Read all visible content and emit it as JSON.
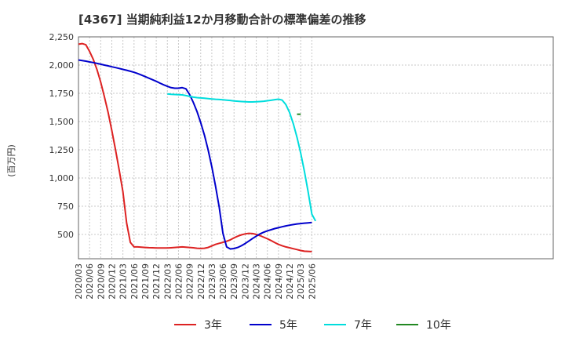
{
  "chart_data": {
    "type": "line",
    "title": "[4367]  当期純利益12か月移動合計の標準偏差の推移",
    "ylabel": "(百万円)",
    "xlabel": "",
    "ylim": [
      285,
      2250
    ],
    "yticks": [
      500,
      750,
      1000,
      1250,
      1500,
      1750,
      2000,
      2250
    ],
    "ytick_labels": [
      "500",
      "750",
      "1,000",
      "1,250",
      "1,500",
      "1,750",
      "2,000",
      "2,250"
    ],
    "x_start": "2020/03",
    "x_end": "2025/06",
    "xtick_labels": [
      "2020/03",
      "2020/06",
      "2020/09",
      "2020/12",
      "2021/03",
      "2021/06",
      "2021/09",
      "2021/12",
      "2022/03",
      "2022/06",
      "2022/09",
      "2022/12",
      "2023/03",
      "2023/06",
      "2023/09",
      "2023/12",
      "2024/03",
      "2024/06",
      "2024/09",
      "2024/12",
      "2025/03",
      "2025/06"
    ],
    "grid": true,
    "legend_position": "bottom",
    "series": [
      {
        "name": "3年",
        "color": "#dd2222",
        "start": "2020/03",
        "values": [
          2185,
          2190,
          2180,
          2120,
          2050,
          1960,
          1850,
          1720,
          1580,
          1420,
          1250,
          1070,
          880,
          600,
          430,
          390,
          390,
          388,
          385,
          383,
          382,
          380,
          380,
          380,
          380,
          382,
          385,
          388,
          390,
          388,
          385,
          382,
          378,
          376,
          378,
          385,
          398,
          412,
          422,
          430,
          440,
          452,
          470,
          485,
          497,
          505,
          510,
          508,
          500,
          490,
          476,
          462,
          446,
          428,
          412,
          400,
          390,
          382,
          374,
          366,
          358,
          352,
          350,
          348
        ]
      },
      {
        "name": "5年",
        "color": "#0000cc",
        "start": "2020/03",
        "values": [
          2045,
          2040,
          2035,
          2028,
          2022,
          2015,
          2008,
          2000,
          1993,
          1985,
          1978,
          1970,
          1962,
          1954,
          1945,
          1936,
          1925,
          1912,
          1898,
          1884,
          1870,
          1856,
          1840,
          1825,
          1812,
          1800,
          1795,
          1795,
          1800,
          1790,
          1740,
          1670,
          1590,
          1490,
          1380,
          1250,
          1100,
          930,
          740,
          510,
          390,
          372,
          375,
          385,
          400,
          420,
          442,
          464,
          485,
          505,
          520,
          532,
          542,
          552,
          560,
          568,
          576,
          582,
          588,
          593,
          597,
          600,
          603,
          606
        ]
      },
      {
        "name": "7年",
        "color": "#00dddd",
        "start": "2022/03",
        "values": [
          1745,
          1742,
          1740,
          1738,
          1736,
          1730,
          1723,
          1716,
          1712,
          1709,
          1706,
          1703,
          1700,
          1697,
          1695,
          1693,
          1690,
          1687,
          1683,
          1680,
          1677,
          1675,
          1674,
          1674,
          1675,
          1677,
          1680,
          1684,
          1688,
          1694,
          1698,
          1690,
          1650,
          1580,
          1480,
          1360,
          1220,
          1060,
          880,
          680,
          620
        ]
      },
      {
        "name": "10年",
        "color": "#228822",
        "start": "2025/02",
        "values": [
          1565,
          1565
        ]
      }
    ]
  }
}
